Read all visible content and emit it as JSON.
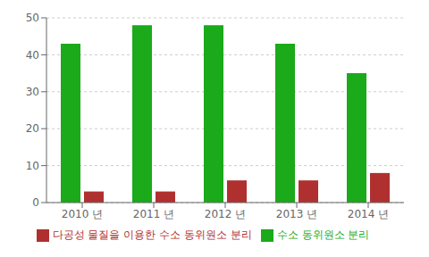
{
  "chart_data": {
    "type": "bar",
    "categories": [
      "2010 년",
      "2011 년",
      "2012 년",
      "2013 년",
      "2014 년"
    ],
    "series": [
      {
        "name": "수소 동위원소 분리",
        "color": "#1aaa1a",
        "values": [
          43,
          48,
          48,
          43,
          35
        ]
      },
      {
        "name": "다공성 물질을 이용한 수소 동위원소 분리",
        "color": "#b03030",
        "values": [
          3,
          3,
          6,
          6,
          8
        ]
      }
    ],
    "ylim": [
      0,
      50
    ],
    "yticks": [
      0,
      10,
      20,
      30,
      40,
      50
    ],
    "grid": true,
    "legend": "bottom"
  }
}
